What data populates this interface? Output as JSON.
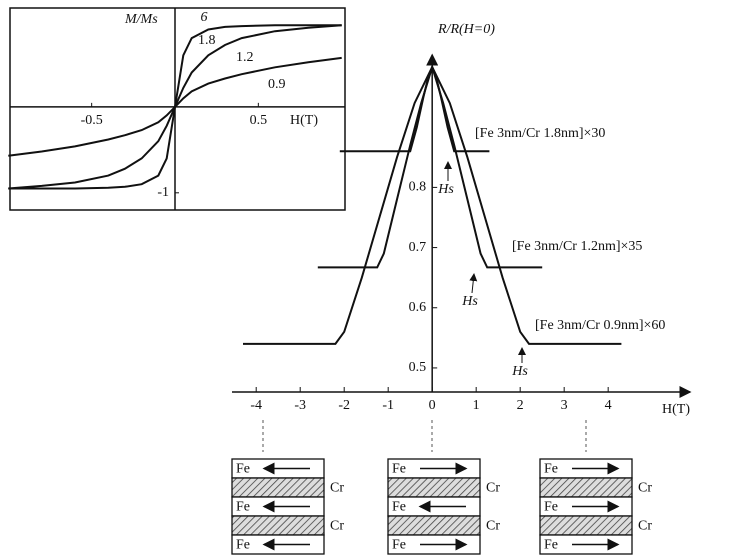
{
  "chart_data": [
    {
      "type": "line",
      "y_label": "R/R(H=0)",
      "x_label": "H(T)",
      "xlim": [
        -4.55,
        5.86
      ],
      "ylim": [
        0.46,
        1.02
      ],
      "xticks": [
        -4,
        -3,
        -2,
        -1,
        0,
        1,
        2,
        3,
        4
      ],
      "yticks": [
        0.5,
        0.6,
        0.7,
        0.8
      ],
      "color": "#111111",
      "series": [
        {
          "name": "[Fe 3nm/Cr 1.8nm]×30",
          "x": [
            -2.1,
            -0.5,
            -0.35,
            -0.2,
            -0.1,
            0,
            0.1,
            0.2,
            0.35,
            0.5,
            1.3
          ],
          "values": [
            0.86,
            0.86,
            0.9,
            0.95,
            0.98,
            1.0,
            0.98,
            0.95,
            0.9,
            0.86,
            0.86
          ]
        },
        {
          "name": "[Fe 3nm/Cr 1.2nm]×35",
          "x": [
            -2.6,
            -1.25,
            -1.1,
            -0.8,
            -0.5,
            -0.25,
            0,
            0.25,
            0.5,
            0.8,
            1.1,
            1.25,
            2.5
          ],
          "values": [
            0.667,
            0.667,
            0.69,
            0.78,
            0.87,
            0.94,
            1.0,
            0.94,
            0.87,
            0.78,
            0.69,
            0.667,
            0.667
          ]
        },
        {
          "name": "[Fe 3nm/Cr 0.9nm]×60",
          "x": [
            -4.3,
            -2.2,
            -2.0,
            -1.6,
            -1.2,
            -0.8,
            -0.4,
            0,
            0.4,
            0.8,
            1.2,
            1.6,
            2.0,
            2.2,
            4.3
          ],
          "values": [
            0.54,
            0.54,
            0.56,
            0.65,
            0.75,
            0.85,
            0.94,
            1.0,
            0.94,
            0.85,
            0.75,
            0.65,
            0.56,
            0.54,
            0.54
          ]
        }
      ],
      "annotations": [
        "Hs",
        "Hs",
        "Hs"
      ]
    },
    {
      "type": "line",
      "y_label": "M/Ms",
      "x_label": "H(T)",
      "xlim": [
        -0.99,
        1.02
      ],
      "ylim": [
        -1.2,
        1.15
      ],
      "xticks": [
        -0.5,
        0.5
      ],
      "yticks": [
        -1
      ],
      "color": "#111111",
      "series": [
        {
          "name": "1.8",
          "x": [
            -1,
            -0.8,
            -0.6,
            -0.4,
            -0.3,
            -0.2,
            -0.1,
            -0.05,
            0,
            0.05,
            0.1,
            0.2,
            0.3,
            0.4,
            0.6,
            0.8,
            1
          ],
          "values": [
            -0.95,
            -0.95,
            -0.95,
            -0.94,
            -0.93,
            -0.9,
            -0.8,
            -0.6,
            0,
            0.6,
            0.8,
            0.9,
            0.93,
            0.94,
            0.95,
            0.95,
            0.95
          ]
        },
        {
          "name": "1.2",
          "x": [
            -1,
            -0.8,
            -0.6,
            -0.4,
            -0.3,
            -0.2,
            -0.1,
            -0.05,
            0,
            0.05,
            0.1,
            0.2,
            0.3,
            0.4,
            0.6,
            0.8,
            1
          ],
          "values": [
            -0.95,
            -0.92,
            -0.88,
            -0.8,
            -0.72,
            -0.6,
            -0.4,
            -0.22,
            0,
            0.22,
            0.4,
            0.6,
            0.72,
            0.8,
            0.88,
            0.92,
            0.95
          ]
        },
        {
          "name": "0.9",
          "x": [
            -1,
            -0.8,
            -0.6,
            -0.4,
            -0.3,
            -0.2,
            -0.1,
            -0.05,
            0,
            0.05,
            0.1,
            0.2,
            0.3,
            0.4,
            0.6,
            0.8,
            1
          ],
          "values": [
            -0.57,
            -0.52,
            -0.46,
            -0.38,
            -0.33,
            -0.27,
            -0.18,
            -0.1,
            0,
            0.1,
            0.18,
            0.27,
            0.33,
            0.38,
            0.46,
            0.52,
            0.57
          ]
        }
      ],
      "annotations": [
        "6"
      ]
    }
  ],
  "layer_diagrams": [
    {
      "fe": [
        "Fe",
        "Fe",
        "Fe"
      ],
      "cr": [
        "Cr",
        "Cr"
      ]
    },
    {
      "fe": [
        "Fe",
        "Fe",
        "Fe"
      ],
      "cr": [
        "Cr",
        "Cr"
      ]
    },
    {
      "fe": [
        "Fe",
        "Fe",
        "Fe"
      ],
      "cr": [
        "Cr",
        "Cr"
      ]
    }
  ]
}
